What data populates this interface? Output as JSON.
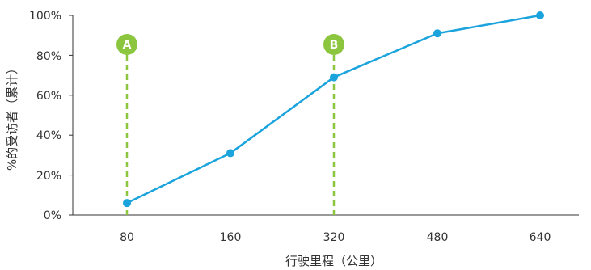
{
  "chart_data": {
    "type": "line",
    "x": [
      80,
      160,
      320,
      480,
      640
    ],
    "xticks": [
      "80",
      "160",
      "320",
      "480",
      "640"
    ],
    "series": [
      {
        "values": [
          6,
          31,
          69,
          91,
          100
        ]
      }
    ],
    "yticks": [
      "0%",
      "20%",
      "40%",
      "60%",
      "80%",
      "100%"
    ],
    "ylim": [
      0,
      100
    ],
    "xlabel": "行驶里程（公里）",
    "ylabel": "%的受访者（累计）",
    "markers": [
      {
        "label": "A",
        "x": 80
      },
      {
        "label": "B",
        "x": 320
      }
    ],
    "colors": {
      "line": "#1aa3dc",
      "marker": "#8cc63f",
      "axis": "#333333"
    }
  }
}
